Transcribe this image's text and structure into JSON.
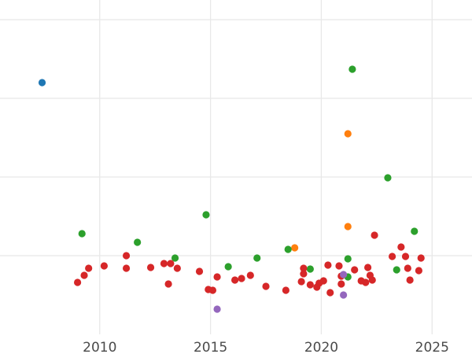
{
  "chart_data": {
    "type": "scatter",
    "title": "",
    "xlabel": "",
    "ylabel": "",
    "xlim": [
      2005.5,
      2026.8
    ],
    "ylim": [
      0,
      4.25
    ],
    "x_ticks": [
      2010,
      2015,
      2020,
      2025
    ],
    "x_tick_labels": [
      "2010",
      "2015",
      "2020",
      "2025"
    ],
    "y_gridlines": [
      1,
      2,
      3,
      4
    ],
    "y_tick_labels_visible": false,
    "grid": true,
    "legend": "none",
    "colors": {
      "blue": "#1f77b4",
      "orange": "#ff7f0e",
      "green": "#2ca02c",
      "red": "#d62728",
      "purple": "#9467bd"
    },
    "series": [
      {
        "color_key": "blue",
        "x": [
          2007.4
        ],
        "y": [
          3.2
        ]
      },
      {
        "color_key": "orange",
        "x": [
          2018.8,
          2021.2,
          2021.2
        ],
        "y": [
          1.1,
          1.37,
          2.55
        ]
      },
      {
        "color_key": "green",
        "x": [
          2009.2,
          2011.7,
          2013.4,
          2014.8,
          2015.8,
          2017.1,
          2018.5,
          2019.5,
          2021.2,
          2021.2,
          2021.4,
          2023.0,
          2023.4,
          2024.2
        ],
        "y": [
          1.28,
          1.17,
          0.97,
          1.52,
          0.86,
          0.97,
          1.08,
          0.83,
          0.96,
          0.73,
          3.37,
          1.99,
          0.82,
          1.31
        ]
      },
      {
        "color_key": "red",
        "x": [
          2009.0,
          2009.3,
          2009.5,
          2010.2,
          2011.2,
          2011.2,
          2012.3,
          2012.9,
          2013.1,
          2013.2,
          2013.5,
          2014.5,
          2014.9,
          2015.1,
          2015.3,
          2016.1,
          2016.4,
          2016.8,
          2017.5,
          2018.4,
          2019.1,
          2019.2,
          2019.2,
          2019.5,
          2019.8,
          2019.9,
          2020.1,
          2020.3,
          2020.4,
          2020.8,
          2020.9,
          2020.9,
          2021.5,
          2021.8,
          2022.0,
          2022.1,
          2022.2,
          2022.3,
          2022.4,
          2023.2,
          2023.6,
          2023.8,
          2023.9,
          2024.0,
          2024.4,
          2024.5
        ],
        "y": [
          0.66,
          0.75,
          0.84,
          0.87,
          1.0,
          0.84,
          0.85,
          0.9,
          0.64,
          0.9,
          0.84,
          0.8,
          0.57,
          0.56,
          0.73,
          0.69,
          0.71,
          0.75,
          0.61,
          0.56,
          0.67,
          0.77,
          0.84,
          0.63,
          0.6,
          0.65,
          0.68,
          0.88,
          0.53,
          0.87,
          0.74,
          0.64,
          0.82,
          0.68,
          0.66,
          0.85,
          0.75,
          0.69,
          1.26,
          0.99,
          1.11,
          0.99,
          0.84,
          0.69,
          0.81,
          0.97
        ]
      },
      {
        "color_key": "purple",
        "x": [
          2015.3,
          2021.0,
          2021.0
        ],
        "y": [
          0.32,
          0.76,
          0.5
        ]
      }
    ]
  }
}
